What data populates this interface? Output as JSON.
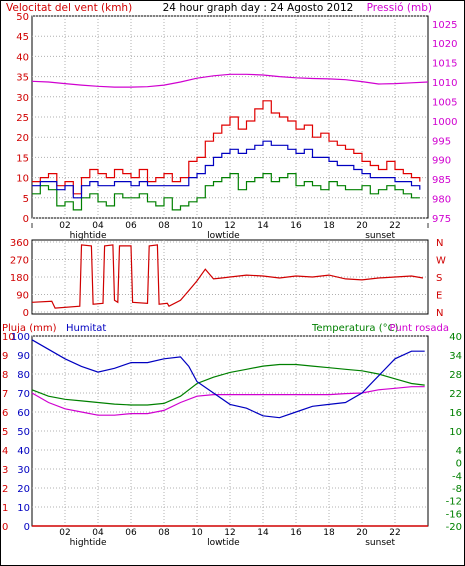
{
  "header": {
    "left": "Velocitat del vent (kmh)",
    "center": "24 hour graph day : 24 Agosto 2012",
    "right": "Pressió (mb)"
  },
  "colors": {
    "wind_gust": "#e00000",
    "wind_avg": "#0000c0",
    "wind_low": "#008000",
    "pressure": "#d000d0",
    "direction": "#d00000",
    "humidity": "#0000c0",
    "temperature": "#008000",
    "dewpoint": "#d000d0",
    "rain": "#d00000",
    "grid": "#b0b0b0"
  },
  "x_ticks": [
    "02",
    "04",
    "06",
    "08",
    "10",
    "12",
    "14",
    "16",
    "18",
    "20",
    "22"
  ],
  "x_events": [
    {
      "label": "hightide",
      "hour": 3.4
    },
    {
      "label": "lowtide",
      "hour": 11.6
    },
    {
      "label": "sunset",
      "hour": 21.1
    }
  ],
  "chart_data": [
    {
      "type": "line",
      "name": "wind-and-pressure",
      "title": "Velocitat del vent (kmh)",
      "y_left": {
        "label": "Velocitat del vent (kmh)",
        "ticks": [
          0,
          5,
          10,
          15,
          20,
          25,
          30,
          35,
          40,
          45,
          50
        ],
        "range": [
          0,
          50
        ]
      },
      "y_right": {
        "label": "Pressió (mb)",
        "ticks": [
          975,
          980,
          985,
          990,
          995,
          1000,
          1005,
          1010,
          1015,
          1020,
          1025
        ],
        "range": [
          975,
          1027
        ]
      },
      "x_range": [
        0,
        24
      ],
      "series": [
        {
          "key": "gust",
          "hours": [
            0,
            0.5,
            1,
            1.5,
            2,
            2.5,
            3,
            3.5,
            4,
            4.5,
            5,
            5.5,
            6,
            6.5,
            7,
            7.5,
            8,
            8.5,
            9,
            9.5,
            10,
            10.5,
            11,
            11.5,
            12,
            12.5,
            13,
            13.5,
            14,
            14.5,
            15,
            15.5,
            16,
            16.5,
            17,
            17.5,
            18,
            18.5,
            19,
            19.5,
            20,
            20.5,
            21,
            21.5,
            22,
            22.5,
            23,
            23.5
          ],
          "values": [
            9,
            10,
            11,
            8,
            9,
            6,
            10,
            12,
            11,
            10,
            12,
            11,
            10,
            12,
            9,
            10,
            11,
            9,
            10,
            14,
            15,
            19,
            21,
            23,
            25,
            22,
            24,
            27,
            29,
            26,
            25,
            24,
            22,
            23,
            20,
            21,
            19,
            18,
            17,
            16,
            14,
            13,
            12,
            14,
            12,
            11,
            10,
            9
          ]
        },
        {
          "key": "avg",
          "hours": [
            0,
            0.5,
            1,
            1.5,
            2,
            2.5,
            3,
            3.5,
            4,
            4.5,
            5,
            5.5,
            6,
            6.5,
            7,
            7.5,
            8,
            8.5,
            9,
            9.5,
            10,
            10.5,
            11,
            11.5,
            12,
            12.5,
            13,
            13.5,
            14,
            14.5,
            15,
            15.5,
            16,
            16.5,
            17,
            17.5,
            18,
            18.5,
            19,
            19.5,
            20,
            20.5,
            21,
            21.5,
            22,
            22.5,
            23,
            23.5
          ],
          "values": [
            8,
            9,
            9,
            7,
            8,
            5,
            8,
            9,
            8,
            8,
            9,
            9,
            8,
            9,
            8,
            8,
            8,
            8,
            8,
            10,
            11,
            13,
            15,
            16,
            17,
            16,
            17,
            18,
            19,
            18,
            18,
            17,
            16,
            17,
            15,
            15,
            14,
            13,
            13,
            12,
            11,
            10,
            10,
            10,
            9,
            9,
            8,
            7
          ]
        },
        {
          "key": "low",
          "hours": [
            0,
            0.5,
            1,
            1.5,
            2,
            2.5,
            3,
            3.5,
            4,
            4.5,
            5,
            5.5,
            6,
            6.5,
            7,
            7.5,
            8,
            8.5,
            9,
            9.5,
            10,
            10.5,
            11,
            11.5,
            12,
            12.5,
            13,
            13.5,
            14,
            14.5,
            15,
            15.5,
            16,
            16.5,
            17,
            17.5,
            18,
            18.5,
            19,
            19.5,
            20,
            20.5,
            21,
            21.5,
            22,
            22.5,
            23,
            23.5
          ],
          "values": [
            6,
            8,
            7,
            3,
            4,
            2,
            5,
            6,
            4,
            3,
            6,
            5,
            5,
            6,
            4,
            3,
            5,
            2,
            3,
            4,
            5,
            8,
            9,
            10,
            11,
            7,
            9,
            10,
            11,
            9,
            10,
            11,
            8,
            9,
            8,
            7,
            9,
            8,
            7,
            7,
            8,
            6,
            7,
            8,
            7,
            6,
            5,
            5
          ]
        },
        {
          "key": "pressure",
          "hours": [
            0,
            1,
            2,
            3,
            4,
            5,
            6,
            7,
            8,
            9,
            10,
            11,
            12,
            13,
            14,
            15,
            16,
            17,
            18,
            19,
            20,
            21,
            22,
            23,
            24
          ],
          "values": [
            1010.2,
            1010.0,
            1009.6,
            1009.2,
            1008.9,
            1008.7,
            1008.7,
            1008.8,
            1009.2,
            1010.0,
            1011.0,
            1011.6,
            1012.0,
            1012.0,
            1011.8,
            1011.4,
            1011.1,
            1010.9,
            1010.8,
            1010.6,
            1010.1,
            1009.5,
            1009.6,
            1009.8,
            1010.0
          ]
        }
      ]
    },
    {
      "type": "line",
      "name": "wind-direction",
      "y_left": {
        "ticks": [
          0,
          90,
          180,
          270,
          360
        ],
        "range": [
          0,
          360
        ]
      },
      "y_right": {
        "ticks": [
          "N",
          "E",
          "S",
          "W",
          "N"
        ]
      },
      "x_range": [
        0,
        24
      ],
      "series": [
        {
          "key": "direction",
          "hours": [
            0,
            1.2,
            1.4,
            2.9,
            3.0,
            3.6,
            3.7,
            4.3,
            4.4,
            4.9,
            5.0,
            5.2,
            5.3,
            6.0,
            6.1,
            7.0,
            7.1,
            7.6,
            7.7,
            8.2,
            8.3,
            9.0,
            9.5,
            10.0,
            10.5,
            11.0,
            11.5,
            12,
            13,
            14,
            15,
            16,
            17,
            18,
            19,
            20,
            21,
            22,
            23,
            23.7
          ],
          "values": [
            50,
            55,
            20,
            30,
            345,
            340,
            40,
            45,
            340,
            345,
            60,
            50,
            340,
            340,
            50,
            45,
            340,
            345,
            40,
            45,
            30,
            60,
            110,
            160,
            220,
            170,
            175,
            180,
            190,
            185,
            175,
            185,
            180,
            190,
            170,
            165,
            175,
            180,
            185,
            175
          ]
        }
      ]
    },
    {
      "type": "line",
      "name": "humidity-temperature",
      "y_left": {
        "labels": [
          "Pluja (mm)",
          "Humitat"
        ],
        "rain_ticks": [
          0,
          1,
          2,
          3,
          4,
          5,
          6,
          7,
          8,
          9,
          10
        ],
        "humidity_ticks": [
          0,
          10,
          20,
          30,
          40,
          50,
          60,
          70,
          80,
          90,
          100
        ],
        "range": [
          0,
          100
        ]
      },
      "y_right": {
        "labels": [
          "Temperatura (°C)",
          "Punt rosada"
        ],
        "ticks": [
          -20,
          -16,
          -12,
          -8,
          -4,
          0,
          4,
          10,
          16,
          22,
          28,
          34,
          40
        ],
        "range": [
          -20,
          40
        ]
      },
      "x_range": [
        0,
        24
      ],
      "series": [
        {
          "key": "humidity",
          "hours": [
            0,
            1,
            2,
            3,
            4,
            5,
            6,
            7,
            8,
            9,
            9.5,
            10,
            11,
            12,
            13,
            14,
            15,
            16,
            17,
            18,
            19,
            20,
            21,
            22,
            23,
            23.8
          ],
          "values": [
            98,
            93,
            88,
            84,
            81,
            83,
            86,
            86,
            88,
            89,
            84,
            76,
            70,
            64,
            62,
            58,
            57,
            60,
            63,
            64,
            65,
            70,
            79,
            88,
            92,
            92
          ]
        },
        {
          "key": "temperature",
          "hours": [
            0,
            1,
            2,
            3,
            4,
            5,
            6,
            7,
            8,
            9,
            10,
            11,
            12,
            13,
            14,
            15,
            16,
            17,
            18,
            19,
            20,
            21,
            22,
            23,
            23.8
          ],
          "values": [
            23,
            21,
            20,
            19.5,
            19,
            18.5,
            18.2,
            18.2,
            18.7,
            21,
            25,
            27,
            28.5,
            29.5,
            30.5,
            31,
            31,
            30.5,
            30,
            29.5,
            29,
            28,
            26.5,
            25,
            24.5
          ]
        },
        {
          "key": "dewpoint",
          "hours": [
            0,
            1,
            2,
            3,
            4,
            5,
            6,
            7,
            8,
            9,
            10,
            11,
            12,
            13,
            14,
            15,
            16,
            17,
            18,
            19,
            20,
            21,
            22,
            23,
            23.8
          ],
          "values": [
            22,
            19,
            17,
            16,
            15,
            15,
            15.5,
            15.5,
            16.5,
            19,
            21,
            21.5,
            21.5,
            21.5,
            21.5,
            21.5,
            21.5,
            21.5,
            21.5,
            21.8,
            22,
            23,
            23.5,
            24,
            24
          ]
        },
        {
          "key": "rain",
          "hours": [
            0,
            24
          ],
          "values": [
            0,
            0
          ]
        }
      ]
    }
  ],
  "panel3_labels": {
    "rain": "Pluja (mm)",
    "humidity": "Humitat",
    "temperature": "Temperatura (°C)",
    "dewpoint": "Punt rosada"
  }
}
